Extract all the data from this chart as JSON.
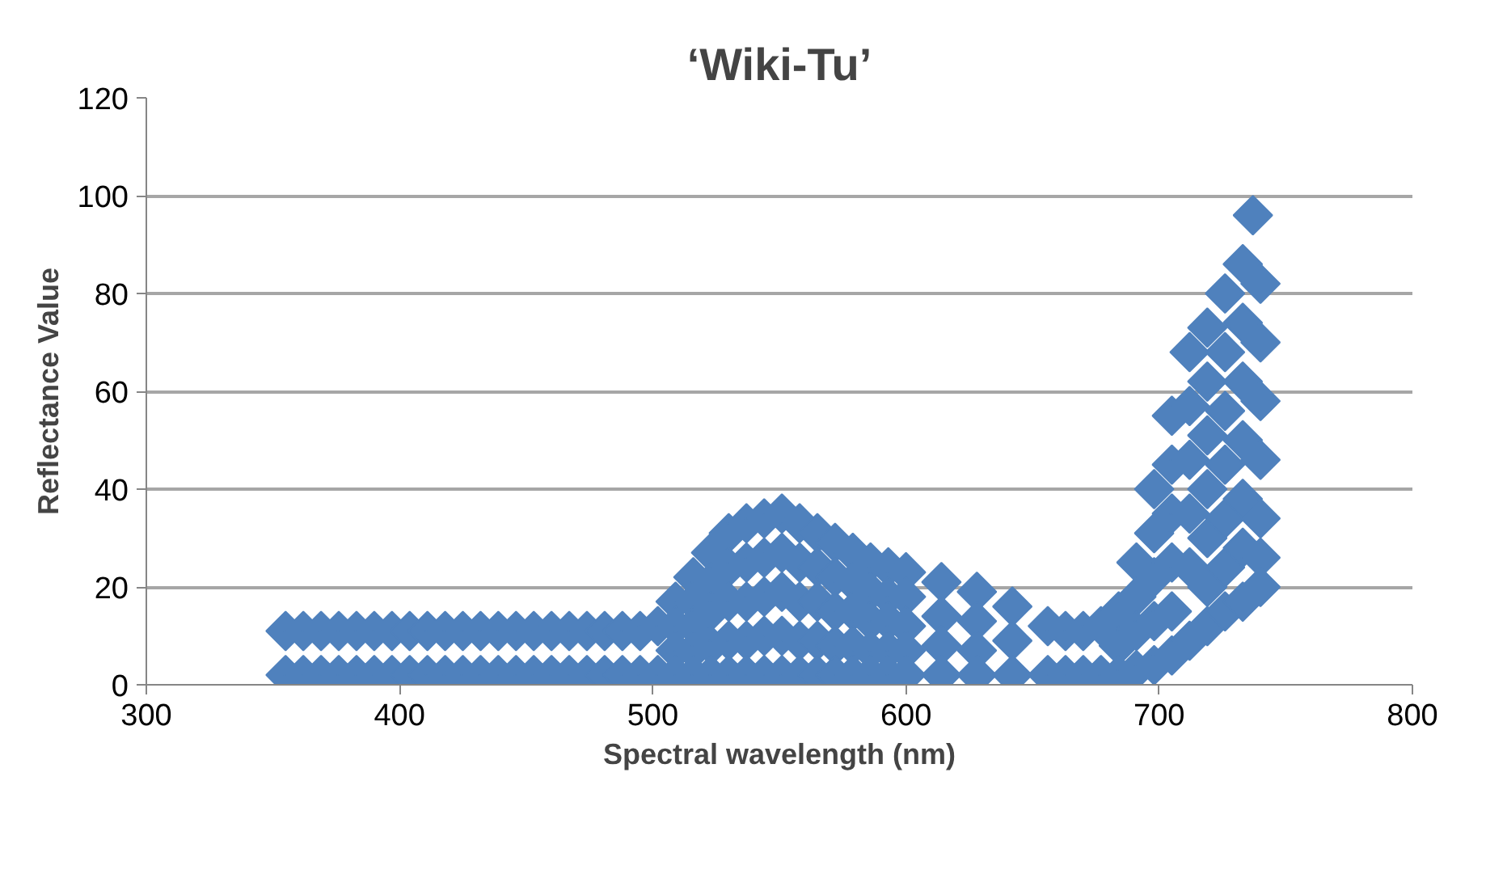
{
  "chart_data": {
    "type": "scatter",
    "title": "‘Wiki-Tu’",
    "xlabel": "Spectral wavelength (nm)",
    "ylabel": "Reflectance Value",
    "xlim": [
      300,
      800
    ],
    "xticks": [
      300,
      400,
      500,
      600,
      700,
      800
    ],
    "ylim": [
      0,
      120
    ],
    "yticks": [
      0,
      20,
      40,
      60,
      80,
      100,
      120
    ],
    "grid": "y",
    "marker": "diamond",
    "series": [
      {
        "color": "#4f81bd",
        "x": [
          355,
          355,
          362,
          362,
          369,
          369,
          376,
          376,
          383,
          383,
          390,
          390,
          397,
          397,
          404,
          404,
          411,
          411,
          418,
          418,
          425,
          425,
          432,
          432,
          439,
          439,
          446,
          446,
          453,
          453,
          460,
          460,
          467,
          467,
          474,
          474,
          481,
          481,
          488,
          488,
          495,
          495,
          502,
          502,
          509,
          509,
          509,
          509,
          516,
          516,
          516,
          516,
          516,
          523,
          523,
          523,
          523,
          523,
          530,
          530,
          530,
          530,
          530,
          537,
          537,
          537,
          537,
          537,
          544,
          544,
          544,
          544,
          544,
          551,
          551,
          551,
          551,
          551,
          558,
          558,
          558,
          558,
          558,
          565,
          565,
          565,
          565,
          565,
          572,
          572,
          572,
          572,
          572,
          579,
          579,
          579,
          579,
          579,
          586,
          586,
          586,
          586,
          586,
          593,
          593,
          593,
          593,
          593,
          600,
          600,
          600,
          600,
          600,
          614,
          614,
          614,
          614,
          628,
          628,
          628,
          628,
          642,
          642,
          642,
          656,
          656,
          663,
          663,
          670,
          670,
          677,
          677,
          684,
          684,
          684,
          691,
          691,
          691,
          691,
          698,
          698,
          698,
          698,
          698,
          705,
          705,
          705,
          705,
          705,
          705,
          712,
          712,
          712,
          712,
          712,
          712,
          719,
          719,
          719,
          719,
          719,
          719,
          719,
          726,
          726,
          726,
          726,
          726,
          726,
          726,
          733,
          733,
          733,
          733,
          733,
          733,
          733,
          740,
          740,
          740,
          740,
          740,
          740,
          740,
          737
        ],
        "values": [
          11,
          2,
          11,
          2,
          11,
          2,
          11,
          2,
          11,
          2,
          11,
          2,
          11,
          2,
          11,
          2,
          11,
          2,
          11,
          2,
          11,
          2,
          11,
          2,
          11,
          2,
          11,
          2,
          11,
          2,
          11,
          2,
          11,
          2,
          11,
          2,
          11,
          2,
          11,
          2,
          11,
          2,
          12,
          2,
          17,
          12,
          7,
          2,
          22,
          17,
          12,
          7,
          2,
          27,
          21,
          15,
          8,
          2,
          31,
          24,
          17,
          9,
          2,
          33,
          25,
          17,
          9,
          2,
          34,
          26,
          18,
          10,
          2,
          35,
          27,
          19,
          10,
          2,
          33,
          25,
          17,
          9,
          2,
          31,
          24,
          17,
          9,
          2,
          29,
          22,
          15,
          8,
          2,
          27,
          21,
          15,
          8,
          2,
          25,
          19,
          13,
          7,
          2,
          24,
          18,
          13,
          7,
          2,
          23,
          18,
          12,
          7,
          2,
          21,
          14,
          8,
          2,
          19,
          13,
          7,
          2,
          16,
          9,
          2,
          12,
          2,
          11,
          2,
          11,
          2,
          12,
          2,
          15,
          8,
          2,
          25,
          18,
          11,
          3,
          40,
          31,
          22,
          13,
          4,
          55,
          45,
          35,
          25,
          15,
          6,
          68,
          57,
          46,
          35,
          24,
          9,
          73,
          62,
          51,
          40,
          30,
          20,
          12,
          80,
          68,
          56,
          45,
          34,
          24,
          15,
          86,
          74,
          62,
          50,
          38,
          28,
          17,
          82,
          70,
          58,
          46,
          34,
          26,
          20,
          96
        ]
      }
    ]
  }
}
